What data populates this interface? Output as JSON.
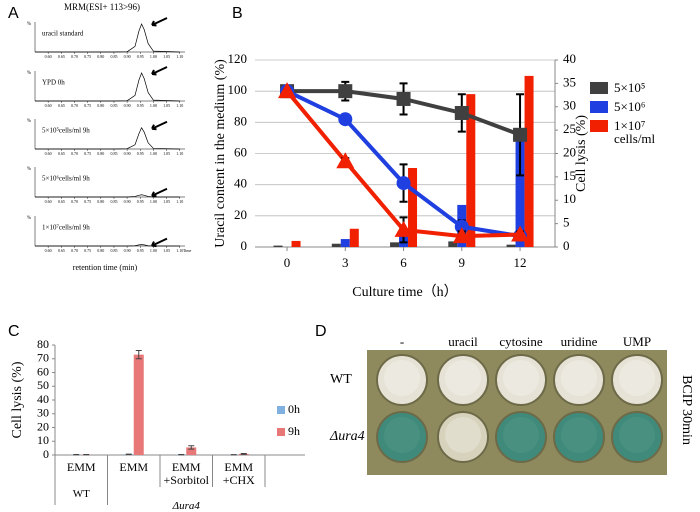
{
  "panel_labels": [
    "A",
    "B",
    "C",
    "D"
  ],
  "chart_data": [
    {
      "type": "line",
      "title": "MRM(ESI+ 113>96)",
      "x_label": "retention time (min)",
      "x_unit_label": "Time",
      "y_unit_label": "%",
      "x": [
        0.55,
        0.85,
        0.9,
        0.93,
        0.945,
        0.955,
        0.965,
        0.98,
        1.0,
        1.1
      ],
      "series": [
        {
          "name": "uracil standard",
          "color": "#000000",
          "values": [
            0,
            0,
            1,
            20,
            75,
            100,
            80,
            30,
            3,
            0
          ]
        },
        {
          "name": "YPD 0h",
          "color": "#000000",
          "values": [
            0,
            0,
            1,
            20,
            75,
            100,
            80,
            30,
            3,
            0
          ]
        },
        {
          "name": "5×10⁵cells/ml 9h",
          "color": "#000000",
          "values": [
            0,
            0,
            1,
            15,
            55,
            76,
            60,
            22,
            2,
            0
          ]
        },
        {
          "name": "5×10⁶cells/ml 9h",
          "color": "#000000",
          "values": [
            0,
            0,
            0,
            2,
            6,
            8,
            6,
            2,
            0,
            0
          ]
        },
        {
          "name": "1×10⁷cells/ml 9h",
          "color": "#000000",
          "values": [
            0,
            0,
            0,
            1,
            4,
            5,
            4,
            1,
            0,
            0
          ]
        }
      ],
      "xlim": [
        0.55,
        1.12
      ],
      "ylim": [
        0,
        100
      ],
      "xticks": [
        {
          "value": 0.6,
          "label": "0.60"
        },
        {
          "value": 0.65,
          "label": "0.65"
        },
        {
          "value": 0.7,
          "label": "0.70"
        },
        {
          "value": 0.75,
          "label": "0.75"
        },
        {
          "value": 0.8,
          "label": "0.80"
        },
        {
          "value": 0.85,
          "label": "0.85"
        },
        {
          "value": 0.9,
          "label": "0.90"
        },
        {
          "value": 0.95,
          "label": "0.95"
        },
        {
          "value": 1.0,
          "label": "1.00"
        },
        {
          "value": 1.05,
          "label": "1.05"
        },
        {
          "value": 1.1,
          "label": "1.10"
        }
      ]
    },
    {
      "type": "combo",
      "x_label": "Culture time（h）",
      "y_label": "Uracil content in the medium (%)",
      "y2_label": "Cell lysis (%)",
      "x": [
        0,
        3,
        6,
        9,
        12
      ],
      "xlim": [
        -1.65,
        13.8
      ],
      "xticks": [
        0,
        3,
        6,
        9,
        12
      ],
      "ylim": [
        0,
        120
      ],
      "yticks": [
        0,
        20,
        40,
        60,
        80,
        100,
        120
      ],
      "y2lim": [
        0,
        40
      ],
      "y2ticks": [
        0,
        5,
        10,
        15,
        20,
        25,
        30,
        35,
        40
      ],
      "grid": true,
      "series": [
        {
          "name": "5×10⁵",
          "color": "#404040",
          "marker": "square",
          "axis": "y",
          "values": [
            100,
            100,
            95,
            86,
            72
          ],
          "errors": [
            2,
            6,
            10,
            12,
            26
          ]
        },
        {
          "name": "5×10⁶",
          "color": "#1f3fe0",
          "marker": "circle",
          "axis": "y",
          "values": [
            100,
            82,
            41,
            13,
            7
          ],
          "errors": [
            1,
            3,
            12,
            4,
            3
          ]
        },
        {
          "name": "1×10⁷ cells/ml",
          "color": "#f02000",
          "marker": "triangle",
          "axis": "y",
          "values": [
            100,
            55,
            11,
            7,
            8
          ],
          "errors": [
            1,
            2,
            8,
            3,
            2
          ]
        }
      ],
      "bar_series": [
        {
          "color": "#404040",
          "axis": "y2",
          "values": [
            0.3,
            0.7,
            1,
            1.2,
            0.5
          ]
        },
        {
          "color": "#1f3fe0",
          "axis": "y2",
          "values": [
            0,
            1.7,
            4,
            9,
            24
          ]
        },
        {
          "color": "#f02000",
          "axis": "y2",
          "values": [
            1.3,
            3.9,
            16.9,
            32.7,
            36.6
          ]
        }
      ]
    },
    {
      "type": "bar",
      "y_label": "Cell lysis (%)",
      "ylim": [
        0,
        80
      ],
      "yticks": [
        0,
        10,
        20,
        30,
        40,
        50,
        60,
        70,
        80
      ],
      "groups": [
        {
          "label": "WT",
          "categories": [
            "EMM"
          ]
        },
        {
          "label": "Δura4",
          "categories": [
            "EMM",
            "EMM +Sorbitol",
            "EMM +CHX"
          ]
        }
      ],
      "series": [
        {
          "name": "0h",
          "color": "#7fb0e0",
          "values": [
            0.3,
            0.5,
            0.3,
            0.2
          ],
          "errors": [
            0.1,
            0.1,
            0.1,
            0.1
          ]
        },
        {
          "name": "9h",
          "color": "#e87878",
          "values": [
            0.3,
            73,
            5.5,
            0.8
          ],
          "errors": [
            0.1,
            3,
            1.2,
            0.3
          ]
        }
      ]
    }
  ],
  "plate": {
    "columns": [
      "-",
      "uracil",
      "cytosine",
      "uridine",
      "UMP"
    ],
    "rows": [
      "WT",
      "Δura4"
    ],
    "side_label": "BCIP 30min",
    "background": "#8f8a5e",
    "colony_colors": [
      [
        "#e6e2d6",
        "#e6e2d6",
        "#e6e2d6",
        "#e6e2d6",
        "#e6e2d6"
      ],
      [
        "#3f8a7a",
        "#d6d2bc",
        "#3f8a7a",
        "#3f8a7a",
        "#3f8a7a"
      ]
    ]
  }
}
